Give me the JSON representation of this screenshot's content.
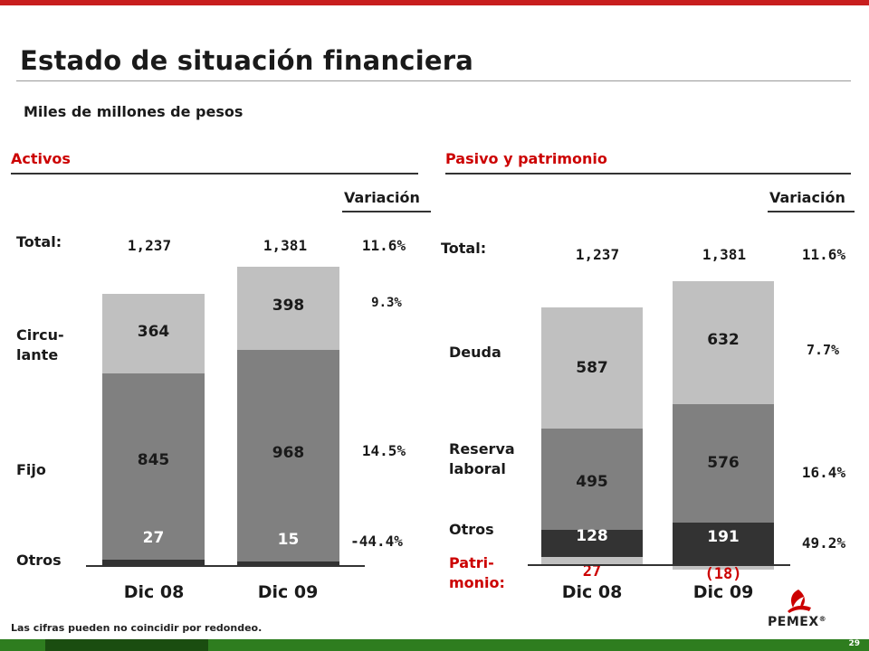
{
  "page": {
    "title": "Estado de situación financiera",
    "subtitle": "Miles de millones de pesos",
    "note": "Las cifras pueden no coincidir por redondeo.",
    "page_number": "29",
    "logo": "PEMEX",
    "logo_mark": "®"
  },
  "activos": {
    "heading": "Activos",
    "variation_heading": "Variación",
    "labels": {
      "total": "Total:",
      "circulante": "Circu-\nlante",
      "fijo": "Fijo",
      "otros": "Otros"
    },
    "totals": [
      "1,237",
      "1,381"
    ],
    "variations": {
      "total": "11.6%",
      "circulante": "9.3%",
      "fijo": "14.5%",
      "otros": "-44.4%"
    },
    "bars": [
      {
        "label": "Dic 08",
        "otros": "27",
        "fijo": "845",
        "circulante": "364"
      },
      {
        "label": "Dic 09",
        "otros": "15",
        "fijo": "968",
        "circulante": "398"
      }
    ]
  },
  "pasivo": {
    "heading": "Pasivo y patrimonio",
    "variation_heading": "Variación",
    "labels": {
      "total": "Total:",
      "deuda": "Deuda",
      "reserva": "Reserva\nlaboral",
      "otros": "Otros",
      "patrimonio": "Patri-\nmonio:"
    },
    "totals": [
      "1,237",
      "1,381"
    ],
    "variations": {
      "total": "11.6%",
      "deuda": "7.7%",
      "reserva": "16.4%",
      "otros": "49.2%"
    },
    "bars": [
      {
        "label": "Dic 08",
        "patrimonio": "27",
        "otros": "128",
        "reserva": "495",
        "deuda": "587"
      },
      {
        "label": "Dic 09",
        "patrimonio": "(18)",
        "otros": "191",
        "reserva": "576",
        "deuda": "632"
      }
    ]
  },
  "chart_data": [
    {
      "type": "bar",
      "stacked": true,
      "title": "Activos",
      "categories": [
        "Dic 08",
        "Dic 09"
      ],
      "series": [
        {
          "name": "Otros",
          "values": [
            27,
            15
          ]
        },
        {
          "name": "Fijo",
          "values": [
            845,
            968
          ]
        },
        {
          "name": "Circulante",
          "values": [
            364,
            398
          ]
        }
      ],
      "totals": [
        1237,
        1381
      ]
    },
    {
      "type": "bar",
      "stacked": true,
      "title": "Pasivo y patrimonio",
      "categories": [
        "Dic 08",
        "Dic 09"
      ],
      "series": [
        {
          "name": "Patrimonio",
          "values": [
            27,
            -18
          ]
        },
        {
          "name": "Otros",
          "values": [
            128,
            191
          ]
        },
        {
          "name": "Reserva laboral",
          "values": [
            495,
            576
          ]
        },
        {
          "name": "Deuda",
          "values": [
            587,
            632
          ]
        }
      ],
      "totals": [
        1237,
        1381
      ]
    }
  ],
  "colors": {
    "accent": "#cc0000",
    "light": "#c0c0c0",
    "mid": "#808080",
    "dark": "#333333",
    "footer": "#2e7d1f"
  }
}
